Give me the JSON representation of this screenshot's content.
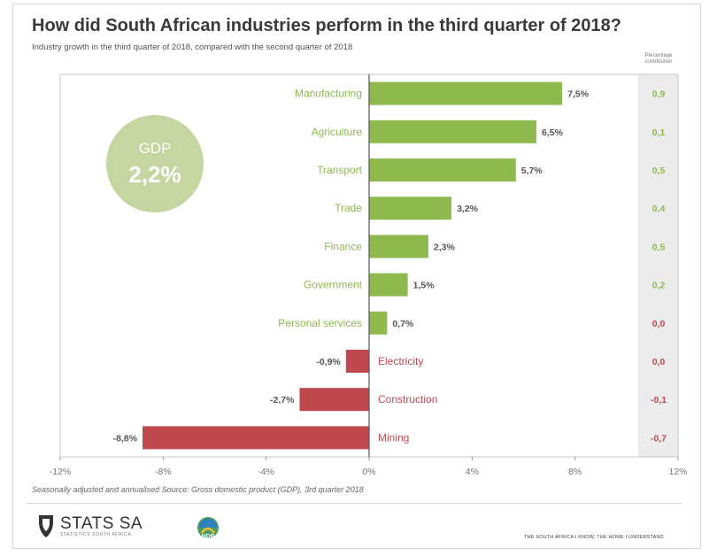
{
  "title": "How did South African industries perform in the third quarter of 2018?",
  "subtitle": "Industry growth in the third quarter of 2018, compared with the second quarter of 2018",
  "contribution_header": "Percentage contribution",
  "gdp": {
    "label": "GDP",
    "value": "2,2%"
  },
  "note": "Seasonally adjusted and annualised    Source: Gross domestic product (GDP), 3rd quarter 2018",
  "brand": {
    "name": "STATS SA",
    "sub": "STATISTICS SOUTH AFRICA",
    "ndp": "NDP"
  },
  "tagline": "THE SOUTH AFRICA I KNOW, THE HOME I UNDERSTAND",
  "colors": {
    "positive": "#8db94f",
    "negative": "#c0494f",
    "gdp_circle": "#c5d6a0",
    "contribution_bg": "#ececec"
  },
  "chart_data": {
    "type": "bar",
    "orientation": "horizontal",
    "categories": [
      "Manufacturing",
      "Agriculture",
      "Transport",
      "Trade",
      "Finance",
      "Government",
      "Personal services",
      "Electricity",
      "Construction",
      "Mining"
    ],
    "values": [
      7.5,
      6.5,
      5.7,
      3.2,
      2.3,
      1.5,
      0.7,
      -0.9,
      -2.7,
      -8.8
    ],
    "value_labels": [
      "7,5%",
      "6,5%",
      "5,7%",
      "3,2%",
      "2,3%",
      "1,5%",
      "0,7%",
      "-0,9%",
      "-2,7%",
      "-8,8%"
    ],
    "contribution": [
      "0,9",
      "0,1",
      "0,5",
      "0,4",
      "0,5",
      "0,2",
      "0,0",
      "0,0",
      "-0,1",
      "-0,7"
    ],
    "xlim": [
      -12,
      12
    ],
    "xticks": [
      -12,
      -8,
      -4,
      0,
      4,
      8,
      12
    ],
    "xtick_labels": [
      "-12%",
      "-8%",
      "-4%",
      "0%",
      "4%",
      "8%",
      "12%"
    ],
    "grid": false
  }
}
